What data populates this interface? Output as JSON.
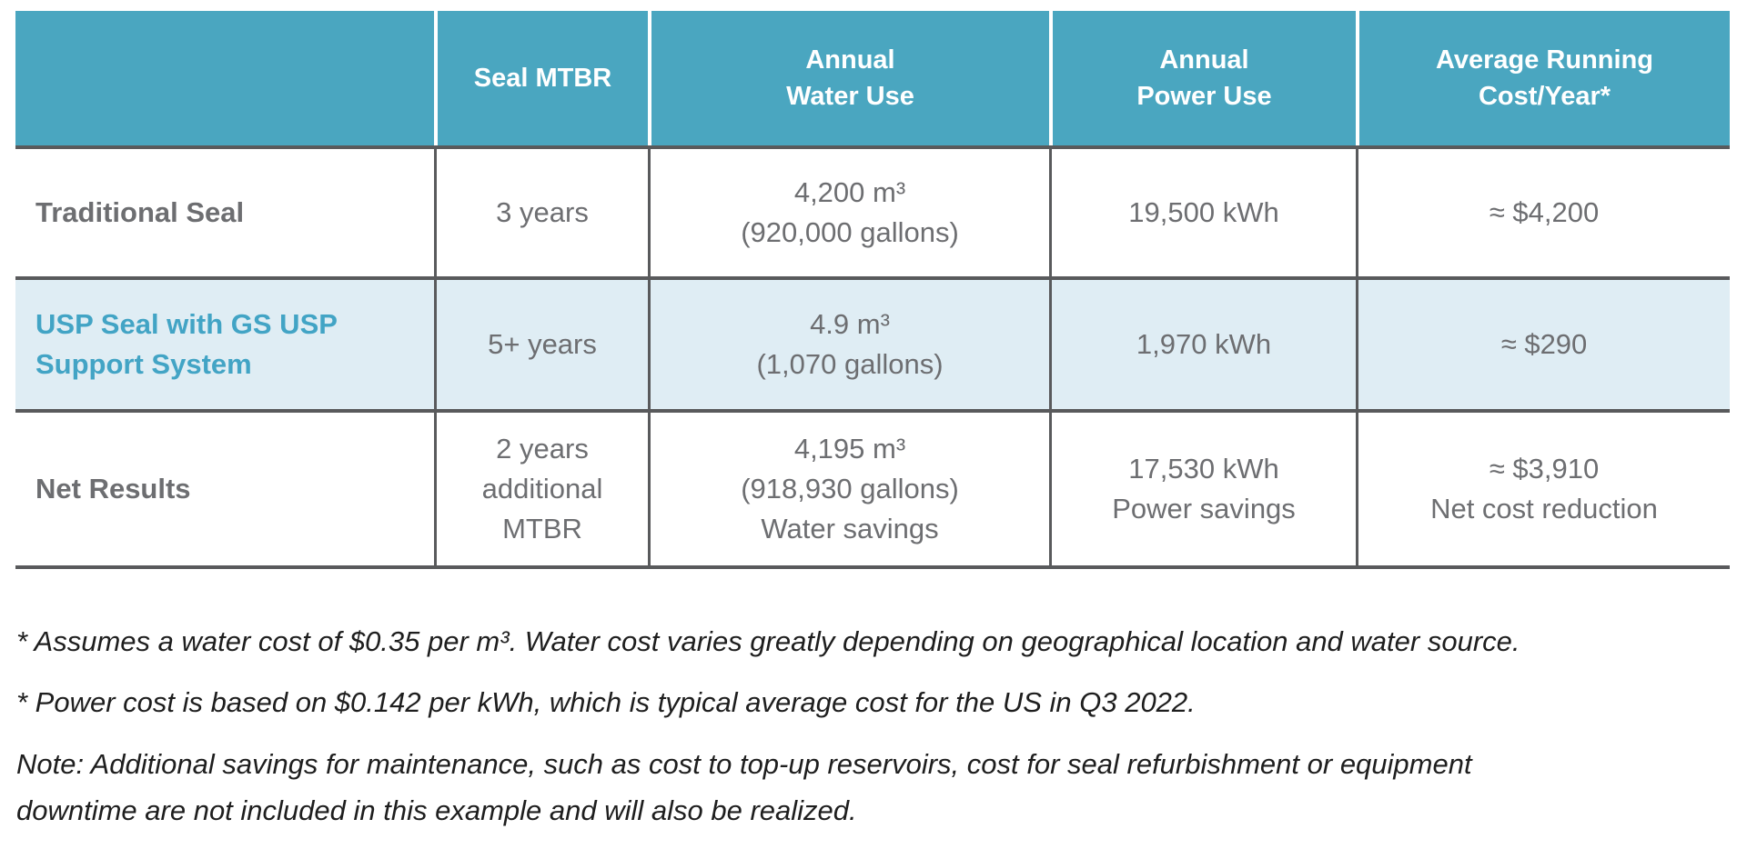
{
  "colors": {
    "header_bg": "#4AA6C0",
    "header_text": "#FFFFFF",
    "highlight_row_bg": "#DFEDF4",
    "highlight_label_text": "#42A4C5",
    "body_text": "#6D6E71",
    "border": "#595A5C",
    "footnote_text": "#1E1E1E"
  },
  "table": {
    "header": [
      "",
      "Seal MTBR",
      "Annual\nWater Use",
      "Annual\nPower Use",
      "Average Running\nCost/Year*"
    ],
    "rows": [
      {
        "label": "Traditional Seal",
        "seal_mtbr": "3 years",
        "annual_water_use": "4,200 m³\n(920,000 gallons)",
        "annual_power_use": "19,500 kWh",
        "avg_running_cost": "≈ $4,200"
      },
      {
        "label": "USP Seal with GS USP\nSupport System",
        "seal_mtbr": "5+ years",
        "annual_water_use": "4.9 m³\n(1,070 gallons)",
        "annual_power_use": "1,970 kWh",
        "avg_running_cost": "≈ $290"
      },
      {
        "label": "Net Results",
        "seal_mtbr": "2 years\nadditional\nMTBR",
        "annual_water_use": "4,195 m³\n(918,930 gallons)\nWater savings",
        "annual_power_use": "17,530 kWh\nPower savings",
        "avg_running_cost": "≈ $3,910\nNet cost reduction"
      }
    ]
  },
  "footnotes": [
    "* Assumes a water cost of $0.35 per m³. Water cost varies greatly depending on geographical location and water source.",
    "* Power cost is based on $0.142 per kWh, which is typical average cost for the US in Q3 2022.",
    "Note: Additional savings for maintenance, such as cost to top-up reservoirs, cost for seal refurbishment or equipment\ndowntime are not included in this example and will also be realized."
  ]
}
